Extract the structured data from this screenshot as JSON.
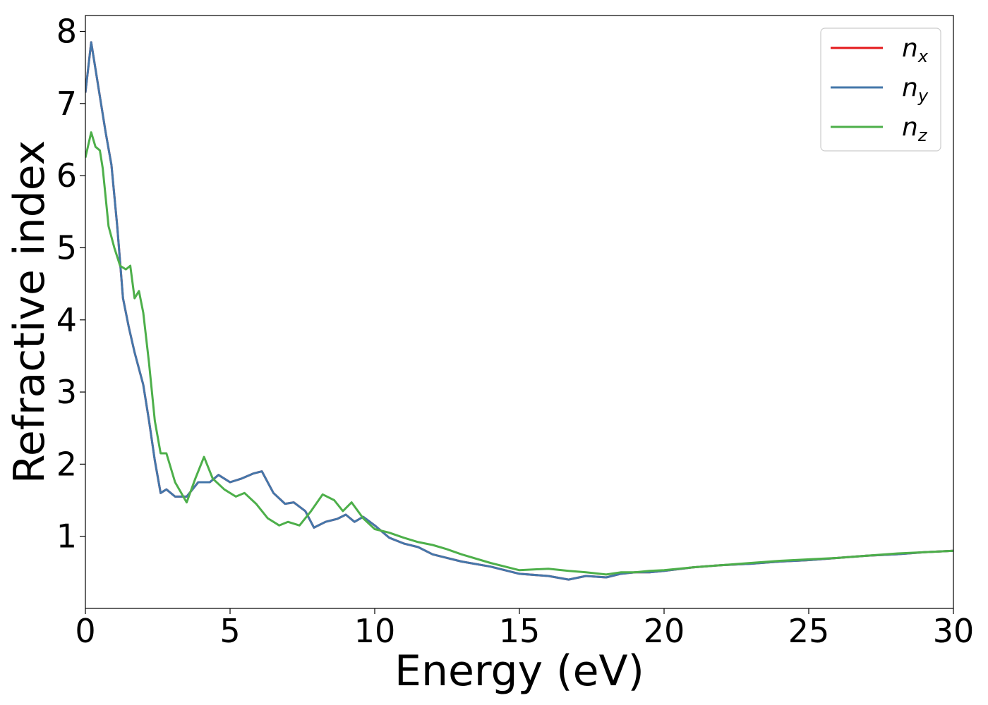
{
  "chart_data": {
    "type": "line",
    "xlabel": "Energy (eV)",
    "ylabel": "Refractive index",
    "xlim": [
      0,
      30
    ],
    "ylim": [
      0,
      8.22
    ],
    "xticks": [
      0,
      5,
      10,
      15,
      20,
      25,
      30
    ],
    "xtick_labels": [
      "0",
      "5",
      "10",
      "15",
      "20",
      "25",
      "30"
    ],
    "yticks": [
      1,
      2,
      3,
      4,
      5,
      6,
      7,
      8
    ],
    "ytick_labels": [
      "1",
      "2",
      "3",
      "4",
      "5",
      "6",
      "7",
      "8"
    ],
    "grid": false,
    "legend_position": "top-right",
    "series": [
      {
        "name": "n",
        "subscript": "x",
        "color": "#e41a1c",
        "x": [
          0,
          0.2,
          0.3,
          0.5,
          0.7,
          0.9,
          1.1,
          1.3,
          1.5,
          1.7,
          2.0,
          2.2,
          2.4,
          2.6,
          2.8,
          3.1,
          3.5,
          3.9,
          4.3,
          4.6,
          5.0,
          5.4,
          5.8,
          6.1,
          6.5,
          6.9,
          7.2,
          7.6,
          7.9,
          8.3,
          8.7,
          9.0,
          9.3,
          9.6,
          10.0,
          10.5,
          11.0,
          11.5,
          12.0,
          12.5,
          13.0,
          14.0,
          15.0,
          16.0,
          16.7,
          17.3,
          18.0,
          18.5,
          19.0,
          19.5,
          20.0,
          21.0,
          22.0,
          23.0,
          24.0,
          25.0,
          26.0,
          27.0,
          28.0,
          29.0,
          30.0
        ],
        "y": [
          7.15,
          7.85,
          7.6,
          7.1,
          6.6,
          6.15,
          5.3,
          4.3,
          3.9,
          3.55,
          3.1,
          2.6,
          2.05,
          1.6,
          1.65,
          1.55,
          1.55,
          1.75,
          1.75,
          1.85,
          1.75,
          1.8,
          1.87,
          1.9,
          1.6,
          1.45,
          1.47,
          1.35,
          1.12,
          1.2,
          1.24,
          1.3,
          1.2,
          1.27,
          1.15,
          0.98,
          0.9,
          0.85,
          0.75,
          0.7,
          0.65,
          0.58,
          0.48,
          0.45,
          0.4,
          0.45,
          0.43,
          0.48,
          0.5,
          0.5,
          0.52,
          0.57,
          0.6,
          0.62,
          0.65,
          0.67,
          0.7,
          0.73,
          0.75,
          0.78,
          0.8
        ]
      },
      {
        "name": "n",
        "subscript": "y",
        "color": "#4477aa",
        "x": [
          0,
          0.2,
          0.3,
          0.5,
          0.7,
          0.9,
          1.1,
          1.3,
          1.5,
          1.7,
          2.0,
          2.2,
          2.4,
          2.6,
          2.8,
          3.1,
          3.5,
          3.9,
          4.3,
          4.6,
          5.0,
          5.4,
          5.8,
          6.1,
          6.5,
          6.9,
          7.2,
          7.6,
          7.9,
          8.3,
          8.7,
          9.0,
          9.3,
          9.6,
          10.0,
          10.5,
          11.0,
          11.5,
          12.0,
          12.5,
          13.0,
          14.0,
          15.0,
          16.0,
          16.7,
          17.3,
          18.0,
          18.5,
          19.0,
          19.5,
          20.0,
          21.0,
          22.0,
          23.0,
          24.0,
          25.0,
          26.0,
          27.0,
          28.0,
          29.0,
          30.0
        ],
        "y": [
          7.15,
          7.85,
          7.6,
          7.1,
          6.6,
          6.15,
          5.3,
          4.3,
          3.9,
          3.55,
          3.1,
          2.6,
          2.05,
          1.6,
          1.65,
          1.55,
          1.55,
          1.75,
          1.75,
          1.85,
          1.75,
          1.8,
          1.87,
          1.9,
          1.6,
          1.45,
          1.47,
          1.35,
          1.12,
          1.2,
          1.24,
          1.3,
          1.2,
          1.27,
          1.15,
          0.98,
          0.9,
          0.85,
          0.75,
          0.7,
          0.65,
          0.58,
          0.48,
          0.45,
          0.4,
          0.45,
          0.43,
          0.48,
          0.5,
          0.5,
          0.52,
          0.57,
          0.6,
          0.62,
          0.65,
          0.67,
          0.7,
          0.73,
          0.75,
          0.78,
          0.8
        ]
      },
      {
        "name": "n",
        "subscript": "z",
        "color": "#4daf4a",
        "x": [
          0,
          0.2,
          0.35,
          0.5,
          0.6,
          0.8,
          1.0,
          1.2,
          1.4,
          1.55,
          1.7,
          1.85,
          2.0,
          2.2,
          2.4,
          2.6,
          2.8,
          3.1,
          3.5,
          3.8,
          4.1,
          4.4,
          4.8,
          5.2,
          5.5,
          5.9,
          6.3,
          6.7,
          7.0,
          7.4,
          7.8,
          8.2,
          8.6,
          8.9,
          9.2,
          9.6,
          10.0,
          10.5,
          11.0,
          11.5,
          12.0,
          12.5,
          13.0,
          14.0,
          15.0,
          16.0,
          16.7,
          17.3,
          18.0,
          18.5,
          19.0,
          19.5,
          20.0,
          21.0,
          22.0,
          23.0,
          24.0,
          25.0,
          26.0,
          27.0,
          28.0,
          29.0,
          30.0
        ],
        "y": [
          6.25,
          6.6,
          6.4,
          6.35,
          6.1,
          5.3,
          5.0,
          4.75,
          4.7,
          4.75,
          4.3,
          4.4,
          4.1,
          3.4,
          2.6,
          2.15,
          2.15,
          1.75,
          1.47,
          1.8,
          2.1,
          1.8,
          1.65,
          1.55,
          1.6,
          1.45,
          1.25,
          1.15,
          1.2,
          1.15,
          1.35,
          1.58,
          1.5,
          1.35,
          1.47,
          1.25,
          1.1,
          1.05,
          0.98,
          0.92,
          0.88,
          0.82,
          0.75,
          0.63,
          0.53,
          0.55,
          0.52,
          0.5,
          0.47,
          0.5,
          0.5,
          0.52,
          0.53,
          0.57,
          0.6,
          0.63,
          0.66,
          0.68,
          0.7,
          0.73,
          0.76,
          0.78,
          0.8
        ]
      }
    ]
  }
}
